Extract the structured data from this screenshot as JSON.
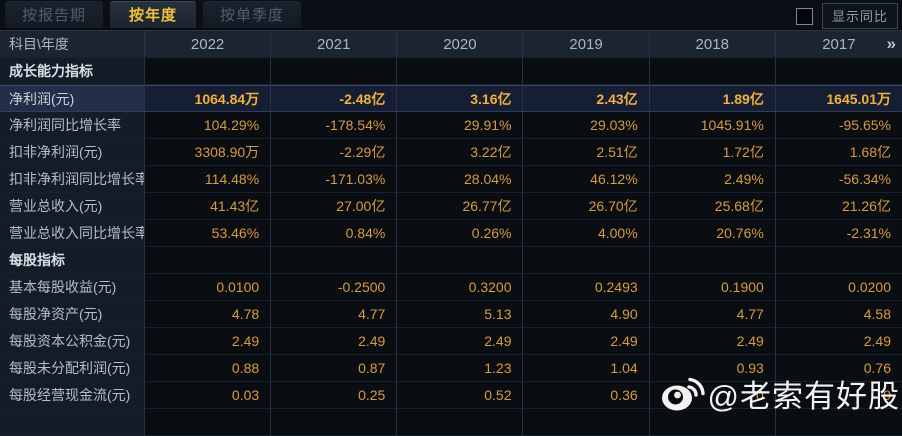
{
  "tabs": [
    {
      "label": "按报告期",
      "active": false
    },
    {
      "label": "按年度",
      "active": true
    },
    {
      "label": "按单季度",
      "active": false
    }
  ],
  "controls": {
    "yoy_checkbox_checked": false,
    "yoy_label": "显示同比"
  },
  "table": {
    "corner_label": "科目\\年度",
    "years": [
      "2022",
      "2021",
      "2020",
      "2019",
      "2018",
      "2017"
    ],
    "more_icon": "»",
    "rows": [
      {
        "type": "section",
        "label": "成长能力指标",
        "highlight": false,
        "values": [
          "",
          "",
          "",
          "",
          "",
          ""
        ]
      },
      {
        "type": "data",
        "label": "净利润(元)",
        "highlight": true,
        "values": [
          "1064.84万",
          "-2.48亿",
          "3.16亿",
          "2.43亿",
          "1.89亿",
          "1645.01万"
        ]
      },
      {
        "type": "data",
        "label": "净利润同比增长率",
        "highlight": false,
        "values": [
          "104.29%",
          "-178.54%",
          "29.91%",
          "29.03%",
          "1045.91%",
          "-95.65%"
        ]
      },
      {
        "type": "data",
        "label": "扣非净利润(元)",
        "highlight": false,
        "values": [
          "3308.90万",
          "-2.29亿",
          "3.22亿",
          "2.51亿",
          "1.72亿",
          "1.68亿"
        ]
      },
      {
        "type": "data",
        "label": "扣非净利润同比增长率",
        "highlight": false,
        "values": [
          "114.48%",
          "-171.03%",
          "28.04%",
          "46.12%",
          "2.49%",
          "-56.34%"
        ]
      },
      {
        "type": "data",
        "label": "营业总收入(元)",
        "highlight": false,
        "values": [
          "41.43亿",
          "27.00亿",
          "26.77亿",
          "26.70亿",
          "25.68亿",
          "21.26亿"
        ]
      },
      {
        "type": "data",
        "label": "营业总收入同比增长率",
        "highlight": false,
        "values": [
          "53.46%",
          "0.84%",
          "0.26%",
          "4.00%",
          "20.76%",
          "-2.31%"
        ]
      },
      {
        "type": "section",
        "label": "每股指标",
        "highlight": false,
        "values": [
          "",
          "",
          "",
          "",
          "",
          ""
        ]
      },
      {
        "type": "data",
        "label": "基本每股收益(元)",
        "highlight": false,
        "values": [
          "0.0100",
          "-0.2500",
          "0.3200",
          "0.2493",
          "0.1900",
          "0.0200"
        ]
      },
      {
        "type": "data",
        "label": "每股净资产(元)",
        "highlight": false,
        "values": [
          "4.78",
          "4.77",
          "5.13",
          "4.90",
          "4.77",
          "4.58"
        ]
      },
      {
        "type": "data",
        "label": "每股资本公积金(元)",
        "highlight": false,
        "values": [
          "2.49",
          "2.49",
          "2.49",
          "2.49",
          "2.49",
          "2.49"
        ]
      },
      {
        "type": "data",
        "label": "每股未分配利润(元)",
        "highlight": false,
        "values": [
          "0.88",
          "0.87",
          "1.23",
          "1.04",
          "0.93",
          "0.76"
        ]
      },
      {
        "type": "data",
        "label": "每股经营现金流(元)",
        "highlight": false,
        "values": [
          "0.03",
          "0.25",
          "0.52",
          "0.36",
          "0",
          "9"
        ]
      }
    ]
  },
  "watermark": {
    "text": "@老索有好股",
    "icon": "weibo-icon"
  },
  "colors": {
    "value_gold": "#d79b40",
    "highlight_gold": "#f2b13c",
    "active_tab_yellow": "#f2c235",
    "header_bg": "#1b2430",
    "label_bg": "#151c27",
    "cell_bg": "#0a0d12",
    "highlight_row_bg": "#161e33",
    "page_bg": "#070a0f",
    "grid_line": "#273244"
  }
}
